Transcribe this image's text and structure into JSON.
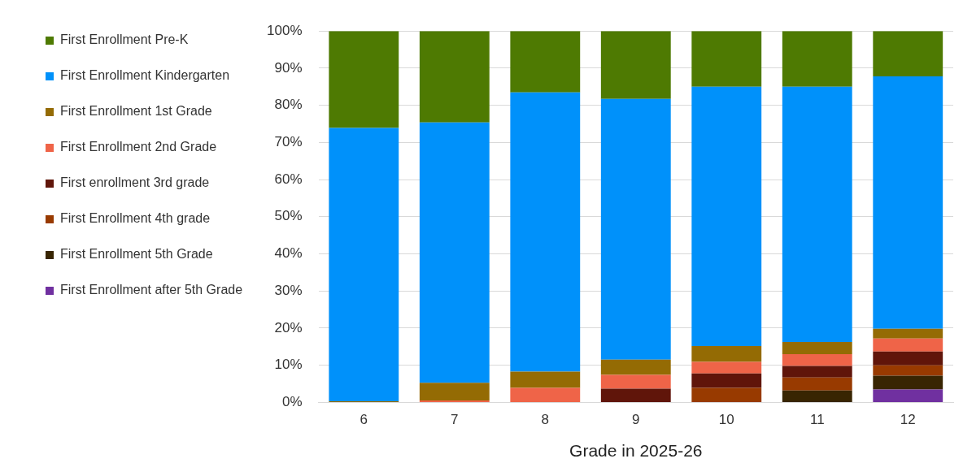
{
  "chart_data": {
    "type": "bar",
    "stacked": true,
    "xlabel": "Grade in 2025-26",
    "categories": [
      "6",
      "7",
      "8",
      "9",
      "10",
      "11",
      "12"
    ],
    "series": [
      {
        "name": "First Enrollment after 5th Grade",
        "color": "#7030a0",
        "values": [
          0,
          0,
          0,
          0,
          0,
          0,
          3.5
        ]
      },
      {
        "name": "First Enrollment 5th Grade",
        "color": "#382502",
        "values": [
          0,
          0,
          0,
          0,
          0,
          3.2,
          3.7
        ]
      },
      {
        "name": "First Enrollment 4th grade",
        "color": "#983a00",
        "values": [
          0,
          0,
          0,
          0,
          3.9,
          3.5,
          2.8
        ]
      },
      {
        "name": "First enrollment 3rd grade",
        "color": "#60150a",
        "values": [
          0,
          0,
          0,
          3.7,
          3.9,
          3.1,
          3.7
        ]
      },
      {
        "name": "First Enrollment 2nd Grade",
        "color": "#ef6448",
        "values": [
          0,
          0.5,
          3.9,
          3.7,
          3.1,
          3.2,
          3.5
        ]
      },
      {
        "name": "First Enrollment 1st Grade",
        "color": "#946b04",
        "values": [
          0.3,
          4.8,
          4.4,
          4.1,
          4.3,
          3.3,
          2.6
        ]
      },
      {
        "name": "First Enrollment Kindergarten",
        "color": "#0091fa",
        "values": [
          73.6,
          70.1,
          75.2,
          70.2,
          69.8,
          68.7,
          68.0
        ]
      },
      {
        "name": "First Enrollment Pre-K",
        "color": "#4e7a02",
        "values": [
          26.1,
          24.6,
          16.5,
          18.3,
          15.0,
          15.0,
          12.2
        ]
      }
    ],
    "ylim": [
      0,
      100
    ],
    "yticks": [
      {
        "value": 0,
        "label": "0%"
      },
      {
        "value": 10,
        "label": "10%"
      },
      {
        "value": 20,
        "label": "20%"
      },
      {
        "value": 30,
        "label": "30%"
      },
      {
        "value": 40,
        "label": "40%"
      },
      {
        "value": 50,
        "label": "50%"
      },
      {
        "value": 60,
        "label": "60%"
      },
      {
        "value": 70,
        "label": "70%"
      },
      {
        "value": 80,
        "label": "80%"
      },
      {
        "value": 90,
        "label": "90%"
      },
      {
        "value": 100,
        "label": "100%"
      }
    ],
    "grid": "y",
    "legend": "left"
  }
}
